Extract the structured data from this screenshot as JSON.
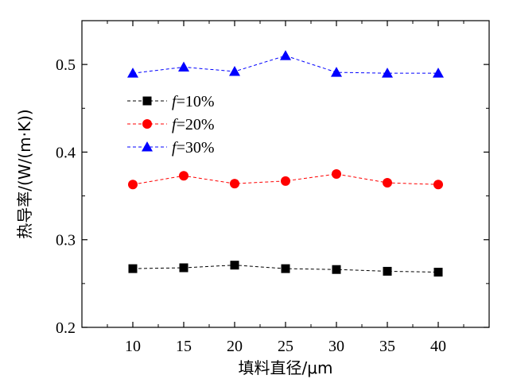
{
  "chart_data": {
    "type": "line",
    "title": "",
    "xlabel": "填料直径/μm",
    "ylabel": "热导率/(W/(m·K))",
    "x": [
      10,
      15,
      20,
      25,
      30,
      35,
      40
    ],
    "x_tick_labels": [
      "10",
      "15",
      "20",
      "25",
      "30",
      "35",
      "40"
    ],
    "xlim": [
      5,
      45
    ],
    "ylim": [
      0.2,
      0.55
    ],
    "y_ticks": [
      0.2,
      0.3,
      0.4,
      0.5
    ],
    "y_tick_labels": [
      "0.2",
      "0.3",
      "0.4",
      "0.5"
    ],
    "grid": false,
    "legend_position": "upper-left",
    "series": [
      {
        "name": "f=10%",
        "legend_prefix": "f",
        "legend_suffix": "=10%",
        "marker": "square",
        "color": "#000000",
        "values": [
          0.267,
          0.268,
          0.271,
          0.267,
          0.266,
          0.264,
          0.263
        ]
      },
      {
        "name": "f=20%",
        "legend_prefix": "f",
        "legend_suffix": "=20%",
        "marker": "circle",
        "color": "#ff0000",
        "values": [
          0.363,
          0.373,
          0.364,
          0.367,
          0.375,
          0.365,
          0.363
        ]
      },
      {
        "name": "f=30%",
        "legend_prefix": "f",
        "legend_suffix": "=30%",
        "marker": "triangle",
        "color": "#0000ff",
        "values": [
          0.49,
          0.497,
          0.492,
          0.51,
          0.491,
          0.49,
          0.49
        ]
      }
    ]
  }
}
